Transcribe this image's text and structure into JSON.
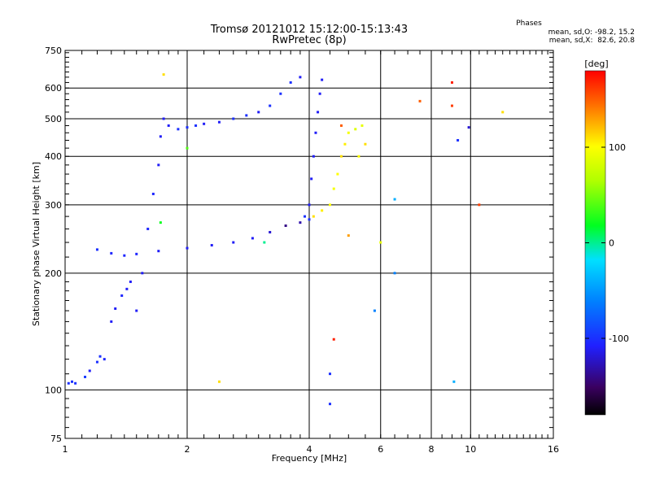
{
  "chart_data": {
    "type": "scatter",
    "title": "Tromsø 20121012 15:12:00-15:13:43",
    "subtitle": "RwPretec (8p)",
    "xlabel": "Frequency [MHz]",
    "ylabel": "Stationary phase Virtual Height [km]",
    "xscale": "log",
    "yscale": "log",
    "xlim": [
      1,
      16
    ],
    "ylim": [
      75,
      750
    ],
    "xticks": [
      "1",
      "2",
      "4",
      "6",
      "8",
      "10",
      "16"
    ],
    "yticks": [
      "75",
      "100",
      "200",
      "300",
      "400",
      "500",
      "600",
      "750"
    ],
    "grid": true,
    "stats": {
      "heading": "Phases",
      "line1": "mean, sd,O: -98.2, 15.2",
      "line2": "mean, sd,X:  82.6, 20.8"
    },
    "colorbar": {
      "label": "[deg]",
      "ticks": [
        "100",
        "0",
        "-100"
      ],
      "range": [
        -180,
        180
      ]
    },
    "series": [
      {
        "points": [
          [
            1.02,
            104,
            -100
          ],
          [
            1.04,
            105,
            -100
          ],
          [
            1.06,
            104,
            -100
          ],
          [
            1.12,
            108,
            -95
          ],
          [
            1.15,
            112,
            -110
          ],
          [
            1.2,
            118,
            -100
          ],
          [
            1.22,
            122,
            -100
          ],
          [
            1.25,
            120,
            -105
          ],
          [
            1.3,
            150,
            -110
          ],
          [
            1.33,
            162,
            -110
          ],
          [
            1.38,
            175,
            -105
          ],
          [
            1.42,
            182,
            -110
          ],
          [
            1.45,
            190,
            -110
          ],
          [
            1.5,
            160,
            -110
          ],
          [
            1.55,
            200,
            -110
          ],
          [
            1.6,
            260,
            -105
          ],
          [
            1.65,
            320,
            -105
          ],
          [
            1.7,
            380,
            -110
          ],
          [
            1.72,
            450,
            -110
          ],
          [
            1.75,
            500,
            -110
          ],
          [
            1.8,
            480,
            -110
          ],
          [
            1.9,
            470,
            -100
          ],
          [
            2.0,
            475,
            -100
          ],
          [
            2.1,
            480,
            -100
          ],
          [
            2.2,
            485,
            -110
          ],
          [
            2.4,
            490,
            -110
          ],
          [
            2.6,
            500,
            -100
          ],
          [
            2.8,
            510,
            -100
          ],
          [
            3.0,
            520,
            -110
          ],
          [
            3.2,
            540,
            -100
          ],
          [
            3.4,
            580,
            -100
          ],
          [
            3.6,
            620,
            -100
          ],
          [
            3.8,
            640,
            -110
          ]
        ]
      },
      {
        "points": [
          [
            1.2,
            230,
            -100
          ],
          [
            1.3,
            225,
            -105
          ],
          [
            1.4,
            222,
            -105
          ],
          [
            1.5,
            224,
            -105
          ],
          [
            1.7,
            228,
            -110
          ],
          [
            2.0,
            232,
            -110
          ],
          [
            2.3,
            236,
            -110
          ],
          [
            2.6,
            240,
            -110
          ],
          [
            2.9,
            246,
            -110
          ],
          [
            3.2,
            255,
            -120
          ],
          [
            3.5,
            265,
            -140
          ],
          [
            3.8,
            270,
            -130
          ],
          [
            4.0,
            275,
            -100
          ]
        ]
      },
      {
        "points": [
          [
            3.9,
            280,
            -100
          ],
          [
            4.0,
            300,
            -110
          ],
          [
            4.05,
            350,
            -110
          ],
          [
            4.1,
            400,
            -110
          ],
          [
            4.15,
            460,
            -110
          ],
          [
            4.2,
            520,
            -110
          ],
          [
            4.25,
            580,
            -110
          ],
          [
            4.3,
            630,
            -110
          ]
        ]
      },
      {
        "points": [
          [
            4.1,
            280,
            110
          ],
          [
            4.3,
            290,
            105
          ],
          [
            4.5,
            300,
            100
          ],
          [
            4.6,
            330,
            95
          ],
          [
            4.7,
            360,
            100
          ],
          [
            4.8,
            400,
            110
          ],
          [
            4.9,
            430,
            105
          ],
          [
            5.0,
            460,
            95
          ],
          [
            5.2,
            470,
            85
          ],
          [
            5.4,
            480,
            90
          ],
          [
            5.5,
            430,
            110
          ],
          [
            5.3,
            400,
            100
          ]
        ]
      },
      {
        "points": [
          [
            4.8,
            480,
            150
          ],
          [
            5.0,
            250,
            130
          ],
          [
            6.0,
            240,
            90
          ],
          [
            7.5,
            555,
            150
          ],
          [
            9.0,
            540,
            160
          ],
          [
            9.0,
            620,
            170
          ],
          [
            10.5,
            300,
            160
          ],
          [
            12.0,
            520,
            110
          ],
          [
            2.4,
            105,
            110
          ],
          [
            1.75,
            650,
            110
          ],
          [
            2.0,
            420,
            40
          ],
          [
            1.72,
            270,
            20
          ],
          [
            4.6,
            135,
            170
          ],
          [
            4.5,
            110,
            -100
          ],
          [
            4.5,
            92,
            -100
          ],
          [
            5.8,
            160,
            -60
          ],
          [
            6.5,
            200,
            -60
          ],
          [
            6.5,
            310,
            -40
          ],
          [
            9.1,
            105,
            -40
          ],
          [
            9.3,
            440,
            -100
          ],
          [
            9.9,
            475,
            -120
          ],
          [
            3.1,
            240,
            0
          ]
        ]
      }
    ]
  }
}
